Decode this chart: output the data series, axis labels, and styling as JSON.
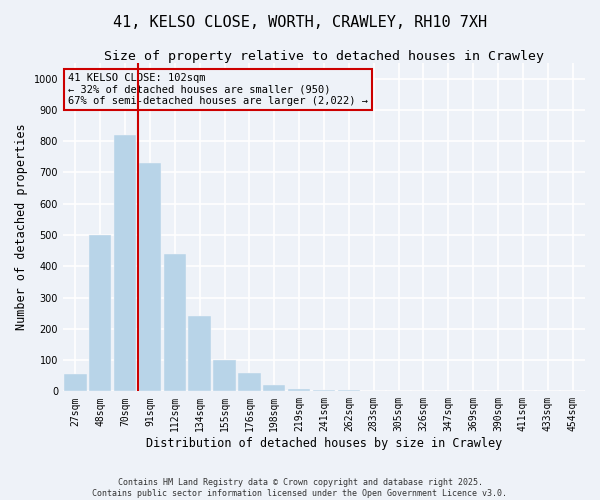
{
  "title": "41, KELSO CLOSE, WORTH, CRAWLEY, RH10 7XH",
  "subtitle": "Size of property relative to detached houses in Crawley",
  "xlabel": "Distribution of detached houses by size in Crawley",
  "ylabel": "Number of detached properties",
  "categories": [
    "27sqm",
    "48sqm",
    "70sqm",
    "91sqm",
    "112sqm",
    "134sqm",
    "155sqm",
    "176sqm",
    "198sqm",
    "219sqm",
    "241sqm",
    "262sqm",
    "283sqm",
    "305sqm",
    "326sqm",
    "347sqm",
    "369sqm",
    "390sqm",
    "411sqm",
    "433sqm",
    "454sqm"
  ],
  "values": [
    55,
    500,
    820,
    730,
    440,
    240,
    100,
    60,
    20,
    8,
    5,
    3,
    2,
    2,
    1,
    1,
    0,
    0,
    0,
    0,
    0
  ],
  "bar_color": "#b8d4e8",
  "subject_line_color": "#cc0000",
  "subject_bin_index": 3,
  "annotation_text": "41 KELSO CLOSE: 102sqm\n← 32% of detached houses are smaller (950)\n67% of semi-detached houses are larger (2,022) →",
  "annotation_box_color": "#cc0000",
  "ylim": [
    0,
    1050
  ],
  "yticks": [
    0,
    100,
    200,
    300,
    400,
    500,
    600,
    700,
    800,
    900,
    1000
  ],
  "footer_line1": "Contains HM Land Registry data © Crown copyright and database right 2025.",
  "footer_line2": "Contains public sector information licensed under the Open Government Licence v3.0.",
  "bg_color": "#eef2f8",
  "grid_color": "#ffffff",
  "title_fontsize": 11,
  "subtitle_fontsize": 9.5,
  "tick_fontsize": 7,
  "label_fontsize": 8.5,
  "ann_fontsize": 7.5
}
